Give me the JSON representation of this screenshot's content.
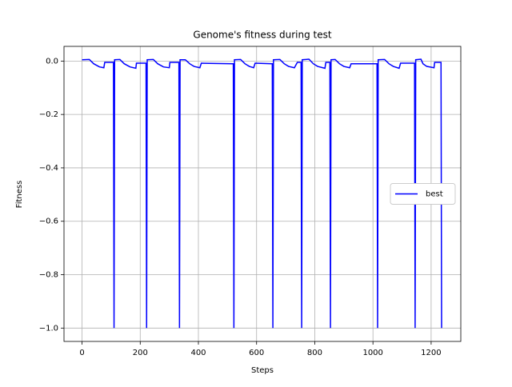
{
  "chart_data": {
    "type": "line",
    "title": "Genome's fitness during test",
    "x_label": "Steps",
    "y_label": "Fitness",
    "x": [
      0,
      25,
      40,
      60,
      75,
      78,
      108,
      110,
      112,
      130,
      145,
      165,
      185,
      187,
      220,
      222,
      224,
      245,
      260,
      280,
      300,
      302,
      333,
      335,
      337,
      355,
      370,
      385,
      405,
      410,
      520,
      522,
      524,
      545,
      560,
      575,
      590,
      595,
      654,
      656,
      658,
      680,
      695,
      710,
      730,
      740,
      753,
      755,
      757,
      780,
      795,
      810,
      835,
      838,
      852,
      854,
      856,
      870,
      885,
      900,
      920,
      925,
      1014,
      1016,
      1018,
      1040,
      1055,
      1070,
      1090,
      1095,
      1143,
      1145,
      1147,
      1165,
      1172,
      1185,
      1210,
      1212,
      1234,
      1236
    ],
    "series": [
      {
        "name": "best",
        "color": "#0000ff",
        "values": [
          0.005,
          0.006,
          -0.01,
          -0.022,
          -0.025,
          -0.005,
          -0.005,
          -1,
          0.005,
          0.006,
          -0.01,
          -0.022,
          -0.027,
          -0.008,
          -0.008,
          -1,
          0.005,
          0.006,
          -0.01,
          -0.022,
          -0.025,
          -0.005,
          -0.005,
          -1,
          0.005,
          0.005,
          -0.01,
          -0.02,
          -0.025,
          -0.008,
          -0.01,
          -1,
          0.005,
          0.006,
          -0.01,
          -0.02,
          -0.025,
          -0.008,
          -0.01,
          -1,
          0.005,
          0.006,
          -0.01,
          -0.02,
          -0.025,
          -0.005,
          -0.005,
          -1,
          0.005,
          0.007,
          -0.01,
          -0.02,
          -0.027,
          -0.005,
          -0.005,
          -1,
          0.005,
          0.006,
          -0.01,
          -0.02,
          -0.025,
          -0.01,
          -0.01,
          -1,
          0.005,
          0.006,
          -0.01,
          -0.02,
          -0.027,
          -0.008,
          -0.008,
          -1,
          0.005,
          0.007,
          -0.01,
          -0.02,
          -0.025,
          -0.005,
          -0.005,
          -1
        ]
      }
    ],
    "xlim": [
      -62,
      1302
    ],
    "ylim": [
      -1.05,
      0.055
    ],
    "xticks": [
      0,
      200,
      400,
      600,
      800,
      1000,
      1200
    ],
    "yticks": [
      {
        "value": 0,
        "label": "0.0"
      },
      {
        "value": -0.2,
        "label": "−0.2"
      },
      {
        "value": -0.4,
        "label": "−0.4"
      },
      {
        "value": -0.6,
        "label": "−0.6"
      },
      {
        "value": -0.8,
        "label": "−0.8"
      },
      {
        "value": -1,
        "label": "−1.0"
      }
    ],
    "grid": true,
    "legend": "center right"
  }
}
